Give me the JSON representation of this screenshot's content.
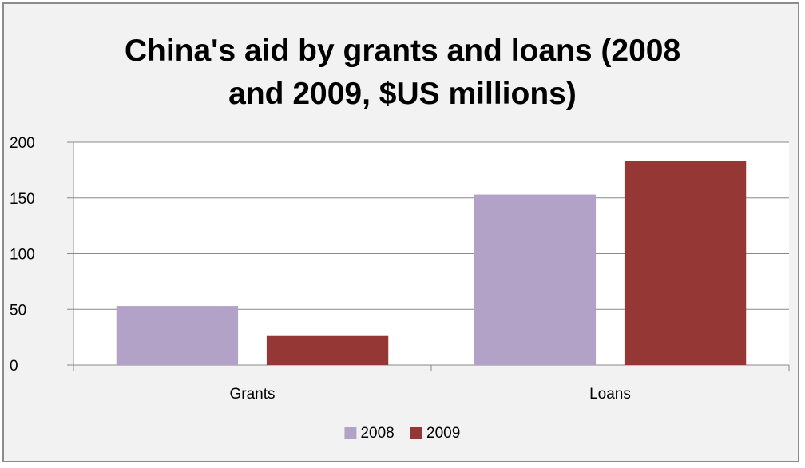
{
  "chart_data": {
    "type": "bar",
    "title_lines": [
      "China's aid by grants and loans (2008",
      "and 2009, $US millions)"
    ],
    "categories": [
      "Grants",
      "Loans"
    ],
    "series": [
      {
        "name": "2008",
        "values": [
          53,
          153
        ],
        "color": "#b3a2c7"
      },
      {
        "name": "2009",
        "values": [
          26,
          183
        ],
        "color": "#953735"
      }
    ],
    "ylim": [
      0,
      200
    ],
    "yticks": [
      "0",
      "50",
      "100",
      "150",
      "200"
    ],
    "grid": true,
    "legend": "bottom",
    "colors": {
      "background": "#f2f2f2",
      "plot_area": "#ffffff",
      "border": "#8c8c8c",
      "gridline": "#888888"
    }
  }
}
